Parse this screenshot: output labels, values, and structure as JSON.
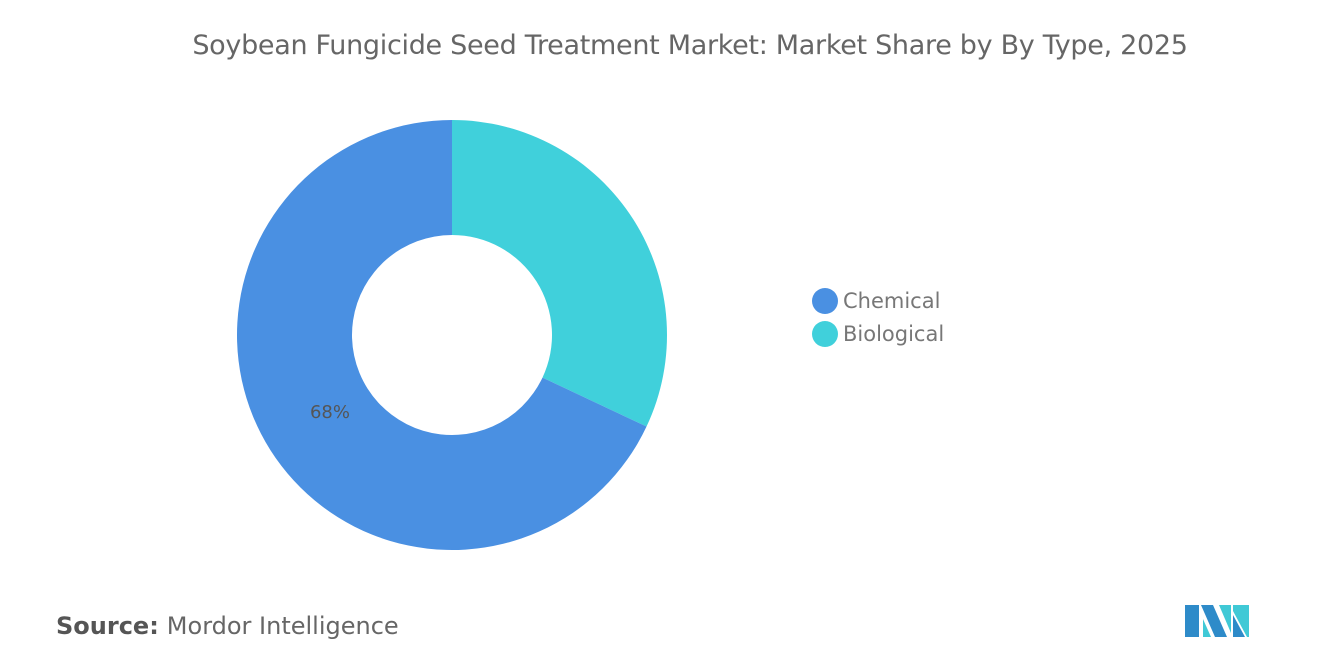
{
  "title": "Soybean Fungicide Seed Treatment Market: Market Share by By Type, 2025",
  "chart_data": {
    "type": "pie",
    "donut": true,
    "title": "Soybean Fungicide Seed Treatment Market: Market Share by By Type, 2025",
    "categories": [
      "Chemical",
      "Biological"
    ],
    "values": [
      68,
      32
    ],
    "unit": "%",
    "colors": [
      "#4a90e2",
      "#40d0db"
    ],
    "data_labels": [
      "68%",
      ""
    ],
    "legend_position": "right"
  },
  "source": {
    "label": "Source:",
    "value": "Mordor Intelligence"
  },
  "logo": {
    "text": "Mordor Intelligence",
    "colors": [
      "#2e8bc9",
      "#40c9d6"
    ]
  }
}
